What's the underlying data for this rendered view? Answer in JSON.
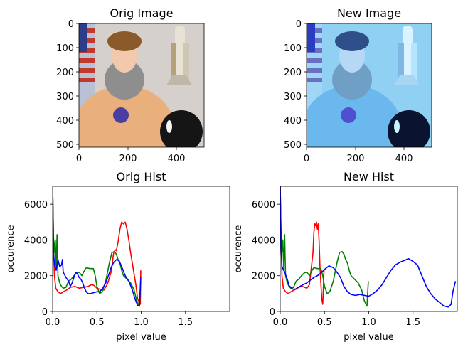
{
  "images": [
    {
      "title": "Orig Image",
      "xticks": [
        "0",
        "200",
        "400"
      ],
      "yticks": [
        "0",
        "100",
        "200",
        "300",
        "400",
        "500"
      ],
      "tint": "#e9b07d",
      "bg": "#d6d0cd"
    },
    {
      "title": "New Image",
      "xticks": [
        "0",
        "200",
        "400"
      ],
      "yticks": [
        "0",
        "100",
        "200",
        "300",
        "400",
        "500"
      ],
      "tint": "#6ab8ee",
      "bg": "#8fd0f3"
    }
  ],
  "chart_data": [
    {
      "type": "line",
      "title": "Orig Hist",
      "xlabel": "pixel value",
      "ylabel": "occurence",
      "xlim": [
        0,
        2.0
      ],
      "ylim": [
        0,
        7000
      ],
      "xticks": [
        0.0,
        0.5,
        1.0,
        1.5
      ],
      "xtick_labels": [
        "0.0",
        "0.5",
        "1.0",
        "1.5"
      ],
      "yticks": [
        0,
        2000,
        4000,
        6000
      ],
      "ytick_labels": [
        "0",
        "2000",
        "4000",
        "6000"
      ],
      "series": [
        {
          "name": "red",
          "color": "#ff0000",
          "points": [
            [
              0.0,
              7000
            ],
            [
              0.01,
              3800
            ],
            [
              0.02,
              2000
            ],
            [
              0.035,
              1300
            ],
            [
              0.06,
              1100
            ],
            [
              0.09,
              1000
            ],
            [
              0.12,
              1100
            ],
            [
              0.16,
              1200
            ],
            [
              0.2,
              1350
            ],
            [
              0.25,
              1400
            ],
            [
              0.3,
              1300
            ],
            [
              0.35,
              1350
            ],
            [
              0.4,
              1400
            ],
            [
              0.44,
              1500
            ],
            [
              0.47,
              1450
            ],
            [
              0.5,
              1300
            ],
            [
              0.53,
              1250
            ],
            [
              0.58,
              1200
            ],
            [
              0.62,
              1550
            ],
            [
              0.66,
              2200
            ],
            [
              0.69,
              3300
            ],
            [
              0.71,
              3450
            ],
            [
              0.72,
              3400
            ],
            [
              0.74,
              3900
            ],
            [
              0.76,
              4600
            ],
            [
              0.78,
              5000
            ],
            [
              0.8,
              4900
            ],
            [
              0.82,
              5000
            ],
            [
              0.84,
              4600
            ],
            [
              0.86,
              4000
            ],
            [
              0.88,
              3300
            ],
            [
              0.9,
              2700
            ],
            [
              0.92,
              2100
            ],
            [
              0.94,
              1500
            ],
            [
              0.96,
              700
            ],
            [
              0.98,
              500
            ],
            [
              0.99,
              400
            ],
            [
              0.995,
              2300
            ]
          ]
        },
        {
          "name": "green",
          "color": "#008000",
          "points": [
            [
              0.0,
              7000
            ],
            [
              0.01,
              4200
            ],
            [
              0.02,
              3300
            ],
            [
              0.03,
              4000
            ],
            [
              0.04,
              2400
            ],
            [
              0.05,
              4300
            ],
            [
              0.06,
              2000
            ],
            [
              0.08,
              1600
            ],
            [
              0.1,
              1400
            ],
            [
              0.12,
              1300
            ],
            [
              0.15,
              1350
            ],
            [
              0.18,
              1700
            ],
            [
              0.21,
              1800
            ],
            [
              0.24,
              2000
            ],
            [
              0.27,
              2150
            ],
            [
              0.3,
              2200
            ],
            [
              0.33,
              2000
            ],
            [
              0.36,
              2300
            ],
            [
              0.38,
              2450
            ],
            [
              0.42,
              2400
            ],
            [
              0.46,
              2400
            ],
            [
              0.48,
              2000
            ],
            [
              0.5,
              1400
            ],
            [
              0.53,
              1000
            ],
            [
              0.56,
              1100
            ],
            [
              0.6,
              1700
            ],
            [
              0.64,
              2700
            ],
            [
              0.67,
              3300
            ],
            [
              0.7,
              3350
            ],
            [
              0.72,
              3200
            ],
            [
              0.74,
              2900
            ],
            [
              0.76,
              2700
            ],
            [
              0.78,
              2300
            ],
            [
              0.8,
              2000
            ],
            [
              0.84,
              1800
            ],
            [
              0.88,
              1600
            ],
            [
              0.92,
              1200
            ],
            [
              0.95,
              600
            ],
            [
              0.98,
              300
            ],
            [
              0.995,
              1700
            ]
          ]
        },
        {
          "name": "blue",
          "color": "#0000ff",
          "points": [
            [
              0.0,
              7000
            ],
            [
              0.01,
              3400
            ],
            [
              0.02,
              2600
            ],
            [
              0.04,
              2300
            ],
            [
              0.06,
              2900
            ],
            [
              0.08,
              2500
            ],
            [
              0.1,
              2600
            ],
            [
              0.11,
              2900
            ],
            [
              0.12,
              2200
            ],
            [
              0.15,
              1900
            ],
            [
              0.18,
              1700
            ],
            [
              0.2,
              1400
            ],
            [
              0.22,
              1600
            ],
            [
              0.24,
              1900
            ],
            [
              0.26,
              2200
            ],
            [
              0.28,
              2100
            ],
            [
              0.3,
              1900
            ],
            [
              0.32,
              1800
            ],
            [
              0.34,
              1600
            ],
            [
              0.36,
              1300
            ],
            [
              0.38,
              1100
            ],
            [
              0.4,
              1000
            ],
            [
              0.43,
              1000
            ],
            [
              0.46,
              1050
            ],
            [
              0.5,
              1100
            ],
            [
              0.53,
              1100
            ],
            [
              0.56,
              1250
            ],
            [
              0.6,
              1600
            ],
            [
              0.63,
              2000
            ],
            [
              0.66,
              2450
            ],
            [
              0.69,
              2750
            ],
            [
              0.72,
              2900
            ],
            [
              0.75,
              2850
            ],
            [
              0.78,
              2500
            ],
            [
              0.82,
              2000
            ],
            [
              0.86,
              1700
            ],
            [
              0.9,
              1200
            ],
            [
              0.93,
              700
            ],
            [
              0.96,
              350
            ],
            [
              0.98,
              300
            ],
            [
              0.995,
              1900
            ]
          ]
        }
      ]
    },
    {
      "type": "line",
      "title": "New Hist",
      "xlabel": "pixel value",
      "ylabel": "occurence",
      "xlim": [
        0,
        2.0
      ],
      "ylim": [
        0,
        7000
      ],
      "xticks": [
        0.0,
        0.5,
        1.0,
        1.5
      ],
      "xtick_labels": [
        "0.0",
        "0.5",
        "1.0",
        "1.5"
      ],
      "yticks": [
        0,
        2000,
        4000,
        6000
      ],
      "ytick_labels": [
        "0",
        "2000",
        "4000",
        "6000"
      ],
      "series": [
        {
          "name": "red",
          "color": "#ff0000",
          "points": [
            [
              0.0,
              7000
            ],
            [
              0.01,
              3800
            ],
            [
              0.02,
              2000
            ],
            [
              0.035,
              1300
            ],
            [
              0.06,
              1100
            ],
            [
              0.09,
              1000
            ],
            [
              0.12,
              1100
            ],
            [
              0.16,
              1200
            ],
            [
              0.2,
              1350
            ],
            [
              0.25,
              1400
            ],
            [
              0.3,
              1300
            ],
            [
              0.33,
              1500
            ],
            [
              0.35,
              2400
            ],
            [
              0.37,
              3300
            ],
            [
              0.38,
              4400
            ],
            [
              0.39,
              4900
            ],
            [
              0.4,
              4800
            ],
            [
              0.41,
              5000
            ],
            [
              0.42,
              4600
            ],
            [
              0.43,
              4900
            ],
            [
              0.44,
              3800
            ],
            [
              0.45,
              2400
            ],
            [
              0.46,
              1500
            ],
            [
              0.47,
              700
            ],
            [
              0.48,
              400
            ],
            [
              0.495,
              2300
            ]
          ]
        },
        {
          "name": "green",
          "color": "#008000",
          "points": [
            [
              0.0,
              7000
            ],
            [
              0.01,
              4200
            ],
            [
              0.02,
              3300
            ],
            [
              0.03,
              4000
            ],
            [
              0.04,
              2400
            ],
            [
              0.05,
              4300
            ],
            [
              0.06,
              2000
            ],
            [
              0.08,
              1600
            ],
            [
              0.1,
              1400
            ],
            [
              0.12,
              1300
            ],
            [
              0.15,
              1350
            ],
            [
              0.18,
              1700
            ],
            [
              0.21,
              1800
            ],
            [
              0.24,
              2000
            ],
            [
              0.27,
              2150
            ],
            [
              0.3,
              2200
            ],
            [
              0.33,
              2000
            ],
            [
              0.36,
              2300
            ],
            [
              0.38,
              2450
            ],
            [
              0.42,
              2400
            ],
            [
              0.46,
              2400
            ],
            [
              0.48,
              2000
            ],
            [
              0.5,
              1400
            ],
            [
              0.53,
              1000
            ],
            [
              0.56,
              1100
            ],
            [
              0.6,
              1700
            ],
            [
              0.64,
              2700
            ],
            [
              0.67,
              3300
            ],
            [
              0.7,
              3350
            ],
            [
              0.72,
              3200
            ],
            [
              0.74,
              2900
            ],
            [
              0.76,
              2700
            ],
            [
              0.78,
              2300
            ],
            [
              0.8,
              2000
            ],
            [
              0.84,
              1800
            ],
            [
              0.88,
              1600
            ],
            [
              0.92,
              1200
            ],
            [
              0.95,
              600
            ],
            [
              0.98,
              300
            ],
            [
              0.995,
              1700
            ]
          ]
        },
        {
          "name": "blue",
          "color": "#0000ff",
          "points": [
            [
              0.0,
              7000
            ],
            [
              0.01,
              3600
            ],
            [
              0.02,
              2500
            ],
            [
              0.05,
              2200
            ],
            [
              0.08,
              1800
            ],
            [
              0.1,
              1450
            ],
            [
              0.14,
              1250
            ],
            [
              0.18,
              1250
            ],
            [
              0.22,
              1400
            ],
            [
              0.26,
              1500
            ],
            [
              0.3,
              1600
            ],
            [
              0.34,
              1750
            ],
            [
              0.38,
              1900
            ],
            [
              0.42,
              2000
            ],
            [
              0.46,
              2150
            ],
            [
              0.5,
              2350
            ],
            [
              0.55,
              2550
            ],
            [
              0.6,
              2450
            ],
            [
              0.64,
              2200
            ],
            [
              0.68,
              1900
            ],
            [
              0.72,
              1400
            ],
            [
              0.76,
              1100
            ],
            [
              0.8,
              950
            ],
            [
              0.85,
              900
            ],
            [
              0.9,
              950
            ],
            [
              0.95,
              900
            ],
            [
              1.0,
              850
            ],
            [
              1.05,
              1000
            ],
            [
              1.1,
              1200
            ],
            [
              1.15,
              1500
            ],
            [
              1.2,
              1900
            ],
            [
              1.25,
              2300
            ],
            [
              1.3,
              2600
            ],
            [
              1.35,
              2750
            ],
            [
              1.4,
              2850
            ],
            [
              1.45,
              2950
            ],
            [
              1.5,
              2800
            ],
            [
              1.55,
              2600
            ],
            [
              1.6,
              2000
            ],
            [
              1.65,
              1400
            ],
            [
              1.7,
              1000
            ],
            [
              1.75,
              700
            ],
            [
              1.8,
              500
            ],
            [
              1.85,
              300
            ],
            [
              1.9,
              250
            ],
            [
              1.93,
              400
            ],
            [
              1.95,
              1100
            ],
            [
              1.98,
              1700
            ]
          ]
        }
      ]
    }
  ]
}
